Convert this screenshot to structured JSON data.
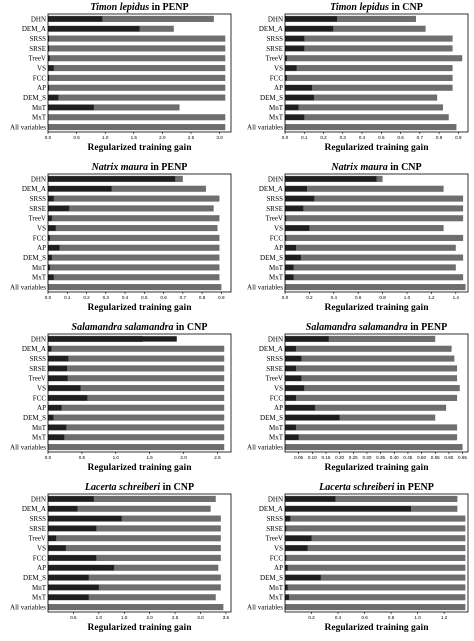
{
  "colors": {
    "total_bar": "#6e6e6e",
    "only_variable_bar": "#1f1f1f",
    "background": "#ffffff"
  },
  "chart_data": [
    {
      "type": "bar",
      "orientation": "horizontal",
      "title_species": "Timon lepidus",
      "title_suffix": " in PENP",
      "xlabel": "Regularized training gain",
      "xlim": [
        0,
        3.2
      ],
      "xticks": [
        "0.0",
        "0.5",
        "1.0",
        "1.5",
        "2.0",
        "2.5",
        "3.0"
      ],
      "tick_values": [
        0,
        0.5,
        1.0,
        1.5,
        2.0,
        2.5,
        3.0
      ],
      "categories": [
        "DHN",
        "DEM_A",
        "SRSS",
        "SRSE",
        "TreeV",
        "VS",
        "FCC",
        "AP",
        "DEM_S",
        "MnT",
        "MxT",
        "All variables"
      ],
      "series": [
        {
          "role": "total",
          "values": [
            2.9,
            2.2,
            3.1,
            3.1,
            3.1,
            3.1,
            3.1,
            3.1,
            3.1,
            2.3,
            3.1,
            3.1
          ]
        },
        {
          "role": "only",
          "values": [
            0.95,
            1.6,
            0.02,
            0.02,
            0.03,
            0.1,
            0.02,
            0.02,
            0.18,
            0.8,
            0.0,
            0.0
          ]
        }
      ]
    },
    {
      "type": "bar",
      "orientation": "horizontal",
      "title_species": "Timon lepidus",
      "title_suffix": " in CNP",
      "xlabel": "Regularized training gain",
      "xlim": [
        0,
        0.95
      ],
      "xticks": [
        "0.0",
        "0.1",
        "0.2",
        "0.3",
        "0.4",
        "0.5",
        "0.6",
        "0.7",
        "0.8",
        "0.9"
      ],
      "tick_values": [
        0,
        0.1,
        0.2,
        0.3,
        0.4,
        0.5,
        0.6,
        0.7,
        0.8,
        0.9
      ],
      "categories": [
        "DHN",
        "DEM_A",
        "SRSS",
        "SRSE",
        "TreeV",
        "VS",
        "FCC",
        "AP",
        "DEM_S",
        "MnT",
        "MxT",
        "All variables"
      ],
      "series": [
        {
          "role": "total",
          "values": [
            0.68,
            0.73,
            0.87,
            0.87,
            0.92,
            0.87,
            0.87,
            0.87,
            0.79,
            0.82,
            0.85,
            0.89
          ]
        },
        {
          "role": "only",
          "values": [
            0.27,
            0.25,
            0.1,
            0.1,
            0.01,
            0.06,
            0.01,
            0.14,
            0.15,
            0.07,
            0.1,
            0.0
          ]
        }
      ]
    },
    {
      "type": "bar",
      "orientation": "horizontal",
      "title_species": "Natrix maura",
      "title_suffix": " in PENP",
      "xlabel": "Regularized training gain",
      "xlim": [
        0,
        0.95
      ],
      "xticks": [
        "0.0",
        "0.1",
        "0.2",
        "0.3",
        "0.4",
        "0.5",
        "0.6",
        "0.7",
        "0.8",
        "0.9"
      ],
      "tick_values": [
        0,
        0.1,
        0.2,
        0.3,
        0.4,
        0.5,
        0.6,
        0.7,
        0.8,
        0.9
      ],
      "categories": [
        "DHN",
        "DEM_A",
        "SRSS",
        "SRSE",
        "TreeV",
        "VS",
        "FCC",
        "AP",
        "DEM_S",
        "MnT",
        "MxT",
        "All variables"
      ],
      "series": [
        {
          "role": "total",
          "values": [
            0.7,
            0.82,
            0.89,
            0.86,
            0.89,
            0.88,
            0.89,
            0.89,
            0.89,
            0.89,
            0.89,
            0.9
          ]
        },
        {
          "role": "only",
          "values": [
            0.66,
            0.33,
            0.03,
            0.11,
            0.02,
            0.04,
            0.01,
            0.06,
            0.02,
            0.01,
            0.03,
            0.0
          ]
        }
      ]
    },
    {
      "type": "bar",
      "orientation": "horizontal",
      "title_species": "Natrix maura",
      "title_suffix": " in CNP",
      "xlabel": "Regularized training gain",
      "xlim": [
        0,
        1.5
      ],
      "xticks": [
        "0.0",
        "0.2",
        "0.4",
        "0.6",
        "0.8",
        "1.0",
        "1.2",
        "1.4"
      ],
      "tick_values": [
        0,
        0.2,
        0.4,
        0.6,
        0.8,
        1.0,
        1.2,
        1.4
      ],
      "categories": [
        "DHN",
        "DEM_A",
        "SRSS",
        "SRSE",
        "TreeV",
        "VS",
        "FCC",
        "AP",
        "DEM_S",
        "MnT",
        "MxT",
        "All variables"
      ],
      "series": [
        {
          "role": "total",
          "values": [
            0.8,
            1.3,
            1.46,
            1.46,
            1.46,
            1.3,
            1.46,
            1.4,
            1.46,
            1.4,
            1.46,
            1.48
          ]
        },
        {
          "role": "only",
          "values": [
            0.75,
            0.18,
            0.24,
            0.15,
            0.01,
            0.2,
            0.01,
            0.09,
            0.13,
            0.07,
            0.07,
            0.0
          ]
        }
      ]
    },
    {
      "type": "bar",
      "orientation": "horizontal",
      "title_species": "Salamandra salamandra",
      "title_suffix": " in CNP",
      "xlabel": "Regularized training gain",
      "xlim": [
        0,
        2.7
      ],
      "xticks": [
        "0.0",
        "0.5",
        "1.0",
        "1.5",
        "2.0",
        "2.5"
      ],
      "tick_values": [
        0,
        0.5,
        1.0,
        1.5,
        2.0,
        2.5
      ],
      "categories": [
        "DHN",
        "DEM_A",
        "SRSS",
        "SRSE",
        "TreeV",
        "VS",
        "FCC",
        "AP",
        "DEM_S",
        "MnT",
        "MxT",
        "All variables"
      ],
      "series": [
        {
          "role": "total",
          "values": [
            1.4,
            2.6,
            2.6,
            2.6,
            2.6,
            2.6,
            2.6,
            2.6,
            2.6,
            2.6,
            2.6,
            2.6
          ]
        },
        {
          "role": "only",
          "values": [
            1.9,
            0.05,
            0.3,
            0.28,
            0.29,
            0.48,
            0.58,
            0.2,
            0.08,
            0.27,
            0.24,
            0.0
          ]
        }
      ]
    },
    {
      "type": "bar",
      "orientation": "horizontal",
      "title_species": "Salamandra salamandra",
      "title_suffix": " in PENP",
      "xlabel": "Regularized training gain",
      "xlim": [
        0,
        0.67
      ],
      "xticks": [
        "0.05",
        "0.10",
        "0.15",
        "0.20",
        "0.25",
        "0.30",
        "0.35",
        "0.40",
        "0.45",
        "0.50",
        "0.55",
        "0.60",
        "0.65"
      ],
      "tick_values": [
        0.05,
        0.1,
        0.15,
        0.2,
        0.25,
        0.3,
        0.35,
        0.4,
        0.45,
        0.5,
        0.55,
        0.6,
        0.65
      ],
      "categories": [
        "DHN",
        "DEM_A",
        "SRSS",
        "SRSE",
        "TreeV",
        "VS",
        "FCC",
        "AP",
        "DEM_S",
        "MnT",
        "MxT",
        "All variables"
      ],
      "series": [
        {
          "role": "total",
          "values": [
            0.55,
            0.61,
            0.62,
            0.63,
            0.63,
            0.64,
            0.63,
            0.59,
            0.55,
            0.63,
            0.63,
            0.65
          ]
        },
        {
          "role": "only",
          "values": [
            0.16,
            0.04,
            0.06,
            0.04,
            0.06,
            0.07,
            0.04,
            0.11,
            0.2,
            0.04,
            0.05,
            0.0
          ]
        }
      ]
    },
    {
      "type": "bar",
      "orientation": "horizontal",
      "title_species": "Lacerta schreiberi",
      "title_suffix": " in CNP",
      "xlabel": "Regularized training gain",
      "xlim": [
        0,
        3.6
      ],
      "xticks": [
        "0.5",
        "1.0",
        "1.5",
        "2.0",
        "2.5",
        "3.0",
        "3.5"
      ],
      "tick_values": [
        0.5,
        1.0,
        1.5,
        2.0,
        2.5,
        3.0,
        3.5
      ],
      "categories": [
        "DHN",
        "DEM_A",
        "SRSS",
        "SRSE",
        "TreeV",
        "VS",
        "FCC",
        "AP",
        "DEM_S",
        "MnT",
        "MxT",
        "All variables"
      ],
      "series": [
        {
          "role": "total",
          "values": [
            3.3,
            3.2,
            3.4,
            3.4,
            3.4,
            3.4,
            3.4,
            3.35,
            3.4,
            3.4,
            3.3,
            3.45
          ]
        },
        {
          "role": "only",
          "values": [
            0.9,
            0.58,
            1.45,
            0.95,
            0.16,
            0.35,
            0.95,
            1.3,
            0.8,
            1.0,
            0.8,
            0.0
          ]
        }
      ]
    },
    {
      "type": "bar",
      "orientation": "horizontal",
      "title_species": "Lacerta schreiberi",
      "title_suffix": " in PENP",
      "xlabel": "Regularized training gain",
      "xlim": [
        0,
        1.38
      ],
      "xticks": [
        "0.2",
        "0.4",
        "0.6",
        "0.8",
        "1.0",
        "1.2"
      ],
      "tick_values": [
        0.2,
        0.4,
        0.6,
        0.8,
        1.0,
        1.2
      ],
      "categories": [
        "DHN",
        "DEM_A",
        "SRSS",
        "SRSE",
        "TreeV",
        "VS",
        "FCC",
        "AP",
        "DEM_S",
        "MnT",
        "MxT",
        "All variables"
      ],
      "series": [
        {
          "role": "total",
          "values": [
            1.3,
            1.3,
            1.36,
            1.36,
            1.36,
            1.36,
            1.36,
            1.36,
            1.36,
            1.36,
            1.36,
            1.36
          ]
        },
        {
          "role": "only",
          "values": [
            0.38,
            0.95,
            0.04,
            0.01,
            0.2,
            0.17,
            0.01,
            0.02,
            0.27,
            0.02,
            0.03,
            0.0
          ]
        }
      ]
    }
  ]
}
